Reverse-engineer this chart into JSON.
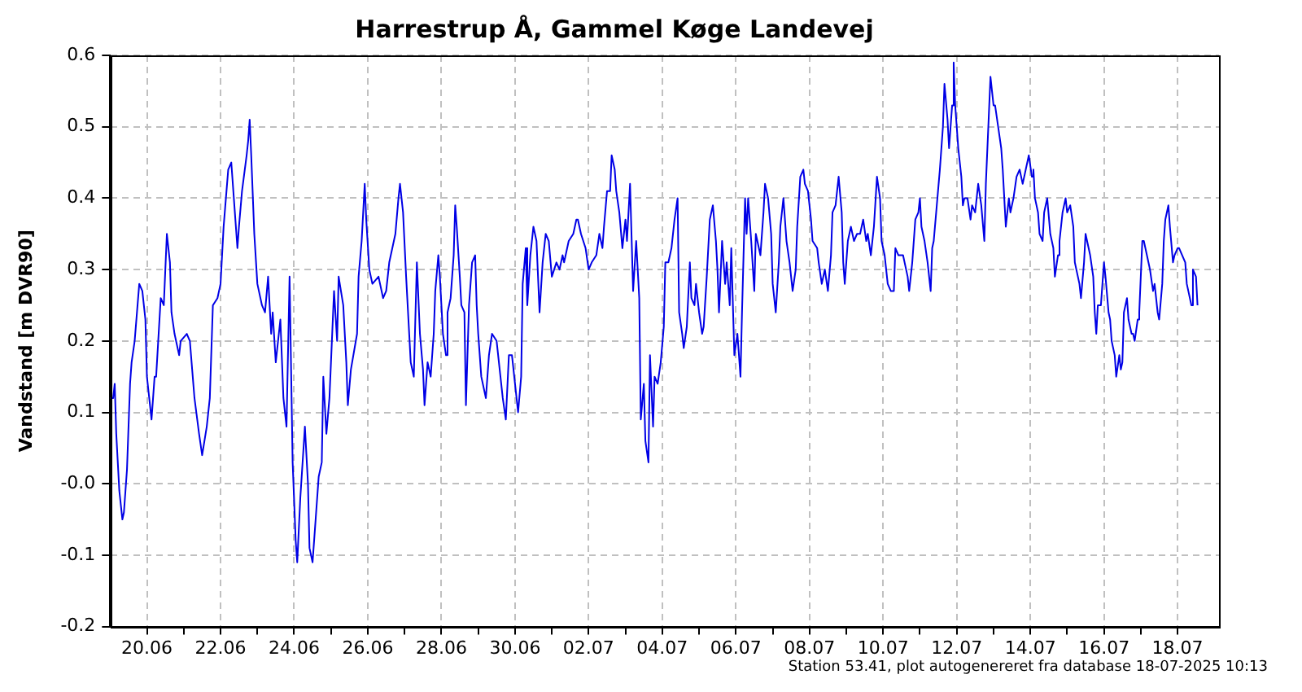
{
  "chart_data": {
    "type": "line",
    "title": "Harrestrup Å, Gammel Køge Landevej",
    "ylabel": "Vandstand [m DVR90]",
    "annotations": [
      "Station 53.41, plot autogenereret fra database 18-07-2025 10:13"
    ],
    "xlim": [
      "2025-06-19T00:00",
      "2025-07-19T03:00"
    ],
    "xticks": [
      {
        "value": "2025-06-20",
        "label": "20.06"
      },
      {
        "value": "2025-06-21",
        "label": null
      },
      {
        "value": "2025-06-22",
        "label": "22.06"
      },
      {
        "value": "2025-06-23",
        "label": null
      },
      {
        "value": "2025-06-24",
        "label": "24.06"
      },
      {
        "value": "2025-06-25",
        "label": null
      },
      {
        "value": "2025-06-26",
        "label": "26.06"
      },
      {
        "value": "2025-06-27",
        "label": null
      },
      {
        "value": "2025-06-28",
        "label": "28.06"
      },
      {
        "value": "2025-06-29",
        "label": null
      },
      {
        "value": "2025-06-30",
        "label": "30.06"
      },
      {
        "value": "2025-07-01",
        "label": null
      },
      {
        "value": "2025-07-02",
        "label": "02.07"
      },
      {
        "value": "2025-07-03",
        "label": null
      },
      {
        "value": "2025-07-04",
        "label": "04.07"
      },
      {
        "value": "2025-07-05",
        "label": null
      },
      {
        "value": "2025-07-06",
        "label": "06.07"
      },
      {
        "value": "2025-07-07",
        "label": null
      },
      {
        "value": "2025-07-08",
        "label": "08.07"
      },
      {
        "value": "2025-07-09",
        "label": null
      },
      {
        "value": "2025-07-10",
        "label": "10.07"
      },
      {
        "value": "2025-07-11",
        "label": null
      },
      {
        "value": "2025-07-12",
        "label": "12.07"
      },
      {
        "value": "2025-07-13",
        "label": null
      },
      {
        "value": "2025-07-14",
        "label": "14.07"
      },
      {
        "value": "2025-07-15",
        "label": null
      },
      {
        "value": "2025-07-16",
        "label": "16.07"
      },
      {
        "value": "2025-07-17",
        "label": null
      },
      {
        "value": "2025-07-18",
        "label": "18.07"
      }
    ],
    "ylim": [
      -0.2,
      0.6
    ],
    "yticks": [
      -0.2,
      -0.1,
      {
        "value": 0,
        "label": "-0.0"
      },
      0.1,
      0.2,
      0.3,
      0.4,
      0.5,
      0.6
    ],
    "grid": true,
    "legend": false,
    "series": [
      {
        "color": "#0000e6",
        "x": [
          "2025-06-19T00:00",
          "2025-06-19T02:00",
          "2025-06-19T03:00",
          "2025-06-19T04:00",
          "2025-06-19T06:00",
          "2025-06-19T08:00",
          "2025-06-19T09:00",
          "2025-06-19T11:00",
          "2025-06-19T13:00",
          "2025-06-19T14:00",
          "2025-06-19T16:00",
          "2025-06-19T19:00",
          "2025-06-19T21:00",
          "2025-06-19T23:00",
          "2025-06-20T00:00",
          "2025-06-20T03:00",
          "2025-06-20T05:00",
          "2025-06-20T06:00",
          "2025-06-20T09:00",
          "2025-06-20T11:00",
          "2025-06-20T13:00",
          "2025-06-20T15:00",
          "2025-06-20T16:00",
          "2025-06-20T18:00",
          "2025-06-20T21:00",
          "2025-06-20T22:00",
          "2025-06-21T02:00",
          "2025-06-21T04:00",
          "2025-06-21T07:00",
          "2025-06-21T10:00",
          "2025-06-21T12:00",
          "2025-06-21T15:00",
          "2025-06-21T17:00",
          "2025-06-21T19:00",
          "2025-06-21T22:00",
          "2025-06-22T00:00",
          "2025-06-22T02:00",
          "2025-06-22T05:00",
          "2025-06-22T07:00",
          "2025-06-22T09:00",
          "2025-06-22T11:00",
          "2025-06-22T12:00",
          "2025-06-22T14:00",
          "2025-06-22T17:00",
          "2025-06-22T18:00",
          "2025-06-22T19:00",
          "2025-06-22T20:00",
          "2025-06-22T22:00",
          "2025-06-23T00:00",
          "2025-06-23T03:00",
          "2025-06-23T05:00",
          "2025-06-23T07:00",
          "2025-06-23T09:00",
          "2025-06-23T10:00",
          "2025-06-23T12:00",
          "2025-06-23T15:00",
          "2025-06-23T17:00",
          "2025-06-23T19:00",
          "2025-06-23T21:00",
          "2025-06-23T23:00",
          "2025-06-24T01:00",
          "2025-06-24T02:00",
          "2025-06-24T04:00",
          "2025-06-24T07:00",
          "2025-06-24T09:00",
          "2025-06-24T10:00",
          "2025-06-24T12:00",
          "2025-06-24T14:00",
          "2025-06-24T16:00",
          "2025-06-24T18:00",
          "2025-06-24T19:00",
          "2025-06-24T21:00",
          "2025-06-24T23:00",
          "2025-06-25T02:00",
          "2025-06-25T04:00",
          "2025-06-25T05:00",
          "2025-06-25T08:00",
          "2025-06-25T10:00",
          "2025-06-25T11:00",
          "2025-06-25T13:00",
          "2025-06-25T17:00",
          "2025-06-25T18:00",
          "2025-06-25T20:00",
          "2025-06-25T22:00",
          "2025-06-25T23:00",
          "2025-06-26T01:00",
          "2025-06-26T03:00",
          "2025-06-26T07:00",
          "2025-06-26T10:00",
          "2025-06-26T12:00",
          "2025-06-26T14:00",
          "2025-06-26T18:00",
          "2025-06-26T20:00",
          "2025-06-26T21:00",
          "2025-06-26T23:00",
          "2025-06-27T01:00",
          "2025-06-27T03:00",
          "2025-06-27T04:00",
          "2025-06-27T06:00",
          "2025-06-27T08:00",
          "2025-06-27T10:00",
          "2025-06-27T12:00",
          "2025-06-27T13:00",
          "2025-06-27T15:00",
          "2025-06-27T17:00",
          "2025-06-27T19:00",
          "2025-06-27T20:00",
          "2025-06-27T22:00",
          "2025-06-27T23:00",
          "2025-06-28T01:00",
          "2025-06-28T03:00",
          "2025-06-28T04:00",
          "2025-06-28T06:00",
          "2025-06-28T08:00",
          "2025-06-28T09:00",
          "2025-06-28T10:00",
          "2025-06-28T12:00",
          "2025-06-28T13:00",
          "2025-06-28T15:00",
          "2025-06-28T16:00",
          "2025-06-28T18:00",
          "2025-06-28T20:00",
          "2025-06-28T22:00",
          "2025-06-28T23:00",
          "2025-06-29T00:00",
          "2025-06-29T02:00",
          "2025-06-29T05:00",
          "2025-06-29T07:00",
          "2025-06-29T09:00",
          "2025-06-29T12:00",
          "2025-06-29T14:00",
          "2025-06-29T16:00",
          "2025-06-29T18:00",
          "2025-06-29T20:00",
          "2025-06-29T22:00",
          "2025-06-30T00:00",
          "2025-06-30T02:00",
          "2025-06-30T04:00",
          "2025-06-30T05:00",
          "2025-06-30T07:00",
          "2025-06-30T08:00",
          "2025-06-30T10:00",
          "2025-06-30T12:00",
          "2025-06-30T14:00",
          "2025-06-30T16:00",
          "2025-06-30T18:00",
          "2025-06-30T20:00",
          "2025-06-30T22:00",
          "2025-07-01T00:00",
          "2025-07-01T03:00",
          "2025-07-01T05:00",
          "2025-07-01T07:00",
          "2025-07-01T08:00",
          "2025-07-01T11:00",
          "2025-07-01T14:00",
          "2025-07-01T16:00",
          "2025-07-01T17:00",
          "2025-07-01T19:00",
          "2025-07-01T22:00",
          "2025-07-02T00:00",
          "2025-07-02T02:00",
          "2025-07-02T05:00",
          "2025-07-02T07:00",
          "2025-07-02T09:00",
          "2025-07-02T10:00",
          "2025-07-02T12:00",
          "2025-07-02T14:00",
          "2025-07-02T15:00",
          "2025-07-02T17:00",
          "2025-07-02T18:00",
          "2025-07-02T20:00",
          "2025-07-02T22:00",
          "2025-07-03T00:00",
          "2025-07-03T01:00",
          "2025-07-03T03:00",
          "2025-07-03T05:00",
          "2025-07-03T07:00",
          "2025-07-03T09:00",
          "2025-07-03T10:00",
          "2025-07-03T12:00",
          "2025-07-03T13:00",
          "2025-07-03T15:00",
          "2025-07-03T16:00",
          "2025-07-03T18:00",
          "2025-07-03T19:00",
          "2025-07-03T21:00",
          "2025-07-03T23:00",
          "2025-07-04T01:00",
          "2025-07-04T02:00",
          "2025-07-04T04:00",
          "2025-07-04T06:00",
          "2025-07-04T08:00",
          "2025-07-04T10:00",
          "2025-07-04T11:00",
          "2025-07-04T13:00",
          "2025-07-04T14:00",
          "2025-07-04T16:00",
          "2025-07-04T18:00",
          "2025-07-04T19:00",
          "2025-07-04T21:00",
          "2025-07-04T22:00",
          "2025-07-05T00:00",
          "2025-07-05T02:00",
          "2025-07-05T03:00",
          "2025-07-05T05:00",
          "2025-07-05T07:00",
          "2025-07-05T09:00",
          "2025-07-05T11:00",
          "2025-07-05T12:00",
          "2025-07-05T13:00",
          "2025-07-05T15:00",
          "2025-07-05T17:00",
          "2025-07-05T18:00",
          "2025-07-05T20:00",
          "2025-07-05T21:00",
          "2025-07-05T23:00",
          "2025-07-06T01:00",
          "2025-07-06T03:00",
          "2025-07-06T04:00",
          "2025-07-06T06:00",
          "2025-07-06T07:00",
          "2025-07-06T08:00",
          "2025-07-06T10:00",
          "2025-07-06T12:00",
          "2025-07-06T13:00",
          "2025-07-06T16:00",
          "2025-07-06T18:00",
          "2025-07-06T19:00",
          "2025-07-06T21:00",
          "2025-07-06T23:00",
          "2025-07-07T00:00",
          "2025-07-07T02:00",
          "2025-07-07T04:00",
          "2025-07-07T05:00",
          "2025-07-07T07:00",
          "2025-07-07T09:00",
          "2025-07-07T11:00",
          "2025-07-07T13:00",
          "2025-07-07T15:00",
          "2025-07-07T16:00",
          "2025-07-07T18:00",
          "2025-07-07T20:00",
          "2025-07-07T21:00",
          "2025-07-07T23:00",
          "2025-07-08T01:00",
          "2025-07-08T02:00",
          "2025-07-08T05:00",
          "2025-07-08T06:00",
          "2025-07-08T08:00",
          "2025-07-08T10:00",
          "2025-07-08T12:00",
          "2025-07-08T14:00",
          "2025-07-08T15:00",
          "2025-07-08T17:00",
          "2025-07-08T19:00",
          "2025-07-08T21:00",
          "2025-07-08T22:00",
          "2025-07-08T23:00",
          "2025-07-09T01:00",
          "2025-07-09T03:00",
          "2025-07-09T05:00",
          "2025-07-09T07:00",
          "2025-07-09T09:00",
          "2025-07-09T11:00",
          "2025-07-09T13:00",
          "2025-07-09T14:00",
          "2025-07-09T16:00",
          "2025-07-09T18:00",
          "2025-07-09T20:00",
          "2025-07-09T22:00",
          "2025-07-09T23:00",
          "2025-07-10T01:00",
          "2025-07-10T03:00",
          "2025-07-10T05:00",
          "2025-07-10T07:00",
          "2025-07-10T08:00",
          "2025-07-10T10:00",
          "2025-07-10T13:00",
          "2025-07-10T16:00",
          "2025-07-10T17:00",
          "2025-07-10T19:00",
          "2025-07-10T21:00",
          "2025-07-10T23:00",
          "2025-07-11T00:00",
          "2025-07-11T01:00",
          "2025-07-11T03:00",
          "2025-07-11T05:00",
          "2025-07-11T07:00",
          "2025-07-11T08:00",
          "2025-07-11T09:00",
          "2025-07-11T11:00",
          "2025-07-11T13:00",
          "2025-07-11T15:00",
          "2025-07-11T16:00",
          "2025-07-11T18:00",
          "2025-07-11T19:00",
          "2025-07-11T21:00",
          "2025-07-11T22:00",
          "2025-07-11T23:00",
          "2025-07-12T01:00",
          "2025-07-12T03:00",
          "2025-07-12T04:00",
          "2025-07-12T05:00",
          "2025-07-12T07:00",
          "2025-07-12T09:00",
          "2025-07-12T10:00",
          "2025-07-12T12:00",
          "2025-07-12T14:00",
          "2025-07-12T16:00",
          "2025-07-12T18:00",
          "2025-07-12T19:00",
          "2025-07-12T21:00",
          "2025-07-12T22:00",
          "2025-07-13T00:00",
          "2025-07-13T01:00",
          "2025-07-13T03:00",
          "2025-07-13T05:00",
          "2025-07-13T06:00",
          "2025-07-13T08:00",
          "2025-07-13T10:00",
          "2025-07-13T11:00",
          "2025-07-13T13:00",
          "2025-07-13T15:00",
          "2025-07-13T17:00",
          "2025-07-13T19:00",
          "2025-07-13T21:00",
          "2025-07-13T23:00",
          "2025-07-14T01:00",
          "2025-07-14T02:00",
          "2025-07-14T03:00",
          "2025-07-14T05:00",
          "2025-07-14T06:00",
          "2025-07-14T08:00",
          "2025-07-14T09:00",
          "2025-07-14T11:00",
          "2025-07-14T13:00",
          "2025-07-14T15:00",
          "2025-07-14T16:00",
          "2025-07-14T18:00",
          "2025-07-14T19:00",
          "2025-07-14T21:00",
          "2025-07-14T23:00",
          "2025-07-15T00:00",
          "2025-07-15T02:00",
          "2025-07-15T04:00",
          "2025-07-15T05:00",
          "2025-07-15T06:00",
          "2025-07-15T08:00",
          "2025-07-15T09:00",
          "2025-07-15T11:00",
          "2025-07-15T12:00",
          "2025-07-15T14:00",
          "2025-07-15T15:00",
          "2025-07-15T17:00",
          "2025-07-15T18:00",
          "2025-07-15T19:00",
          "2025-07-15T20:00",
          "2025-07-15T22:00",
          "2025-07-16T00:00",
          "2025-07-16T01:00",
          "2025-07-16T03:00",
          "2025-07-16T04:00",
          "2025-07-16T05:00",
          "2025-07-16T07:00",
          "2025-07-16T08:00",
          "2025-07-16T10:00",
          "2025-07-16T11:00",
          "2025-07-16T12:00",
          "2025-07-16T13:00",
          "2025-07-16T15:00",
          "2025-07-16T16:00",
          "2025-07-16T18:00",
          "2025-07-16T19:00",
          "2025-07-16T20:00",
          "2025-07-16T22:00",
          "2025-07-16T23:00",
          "2025-07-17T01:00",
          "2025-07-17T02:00",
          "2025-07-17T04:00",
          "2025-07-17T05:00",
          "2025-07-17T06:00",
          "2025-07-17T08:00",
          "2025-07-17T09:00",
          "2025-07-17T11:00",
          "2025-07-17T12:00",
          "2025-07-17T14:00",
          "2025-07-17T15:00",
          "2025-07-17T16:00",
          "2025-07-17T18:00",
          "2025-07-17T19:00",
          "2025-07-17T21:00",
          "2025-07-17T22:00",
          "2025-07-18T00:00",
          "2025-07-18T01:00",
          "2025-07-18T03:00",
          "2025-07-18T05:00",
          "2025-07-18T06:00",
          "2025-07-18T07:00",
          "2025-07-18T09:00",
          "2025-07-18T10:00",
          "2025-07-18T12:00",
          "2025-07-18T13:00"
        ],
        "values": [
          0.12,
          0.12,
          0.14,
          0.07,
          -0.01,
          -0.05,
          -0.04,
          0.02,
          0.14,
          0.17,
          0.2,
          0.28,
          0.27,
          0.23,
          0.15,
          0.09,
          0.15,
          0.15,
          0.26,
          0.25,
          0.35,
          0.31,
          0.24,
          0.21,
          0.18,
          0.2,
          0.21,
          0.2,
          0.12,
          0.07,
          0.04,
          0.08,
          0.12,
          0.25,
          0.26,
          0.28,
          0.36,
          0.44,
          0.45,
          0.39,
          0.33,
          0.36,
          0.41,
          0.46,
          0.48,
          0.51,
          0.46,
          0.35,
          0.28,
          0.25,
          0.24,
          0.29,
          0.21,
          0.24,
          0.17,
          0.23,
          0.12,
          0.08,
          0.29,
          0.03,
          -0.08,
          -0.11,
          -0.02,
          0.08,
          0.0,
          -0.09,
          -0.11,
          -0.05,
          0.01,
          0.03,
          0.15,
          0.07,
          0.12,
          0.27,
          0.2,
          0.29,
          0.25,
          0.17,
          0.11,
          0.16,
          0.21,
          0.29,
          0.34,
          0.42,
          0.37,
          0.3,
          0.28,
          0.29,
          0.26,
          0.27,
          0.31,
          0.35,
          0.4,
          0.42,
          0.38,
          0.29,
          0.21,
          0.17,
          0.15,
          0.31,
          0.21,
          0.16,
          0.11,
          0.17,
          0.15,
          0.21,
          0.27,
          0.32,
          0.29,
          0.21,
          0.18,
          0.24,
          0.26,
          0.32,
          0.39,
          0.36,
          0.29,
          0.25,
          0.24,
          0.11,
          0.25,
          0.31,
          0.32,
          0.25,
          0.21,
          0.15,
          0.12,
          0.18,
          0.21,
          0.2,
          0.16,
          0.12,
          0.09,
          0.18,
          0.18,
          0.14,
          0.1,
          0.15,
          0.28,
          0.33,
          0.25,
          0.32,
          0.36,
          0.34,
          0.24,
          0.31,
          0.35,
          0.34,
          0.29,
          0.31,
          0.3,
          0.32,
          0.31,
          0.34,
          0.35,
          0.37,
          0.37,
          0.35,
          0.33,
          0.3,
          0.31,
          0.32,
          0.35,
          0.33,
          0.36,
          0.41,
          0.41,
          0.46,
          0.44,
          0.41,
          0.38,
          0.33,
          0.37,
          0.34,
          0.42,
          0.27,
          0.34,
          0.26,
          0.09,
          0.14,
          0.06,
          0.03,
          0.18,
          0.08,
          0.15,
          0.14,
          0.17,
          0.22,
          0.31,
          0.31,
          0.33,
          0.37,
          0.4,
          0.24,
          0.21,
          0.19,
          0.22,
          0.31,
          0.26,
          0.25,
          0.28,
          0.24,
          0.21,
          0.22,
          0.29,
          0.37,
          0.39,
          0.34,
          0.3,
          0.24,
          0.34,
          0.28,
          0.31,
          0.25,
          0.33,
          0.18,
          0.21,
          0.15,
          0.24,
          0.4,
          0.35,
          0.4,
          0.34,
          0.27,
          0.35,
          0.32,
          0.38,
          0.42,
          0.4,
          0.35,
          0.28,
          0.24,
          0.31,
          0.36,
          0.4,
          0.34,
          0.31,
          0.27,
          0.3,
          0.36,
          0.43,
          0.44,
          0.42,
          0.41,
          0.37,
          0.34,
          0.33,
          0.31,
          0.28,
          0.3,
          0.27,
          0.32,
          0.38,
          0.39,
          0.43,
          0.38,
          0.31,
          0.28,
          0.34,
          0.36,
          0.34,
          0.35,
          0.35,
          0.37,
          0.34,
          0.35,
          0.32,
          0.36,
          0.43,
          0.4,
          0.34,
          0.32,
          0.28,
          0.27,
          0.27,
          0.33,
          0.32,
          0.32,
          0.29,
          0.27,
          0.31,
          0.37,
          0.38,
          0.4,
          0.36,
          0.34,
          0.31,
          0.27,
          0.33,
          0.34,
          0.39,
          0.44,
          0.5,
          0.56,
          0.51,
          0.47,
          0.53,
          0.59,
          0.53,
          0.47,
          0.43,
          0.39,
          0.4,
          0.4,
          0.37,
          0.39,
          0.38,
          0.42,
          0.39,
          0.34,
          0.42,
          0.52,
          0.57,
          0.53,
          0.53,
          0.5,
          0.47,
          0.44,
          0.36,
          0.4,
          0.38,
          0.4,
          0.43,
          0.44,
          0.42,
          0.44,
          0.46,
          0.43,
          0.44,
          0.4,
          0.38,
          0.35,
          0.34,
          0.38,
          0.4,
          0.35,
          0.33,
          0.29,
          0.32,
          0.34,
          0.38,
          0.4,
          0.38,
          0.39,
          0.36,
          0.31,
          0.3,
          0.28,
          0.26,
          0.31,
          0.35,
          0.33,
          0.32,
          0.29,
          0.24,
          0.21,
          0.25,
          0.25,
          0.31,
          0.29,
          0.24,
          0.23,
          0.2,
          0.18,
          0.15,
          0.18,
          0.16,
          0.17,
          0.24,
          0.26,
          0.23,
          0.21,
          0.21,
          0.2,
          0.23,
          0.24,
          0.34,
          0.34,
          0.32,
          0.31,
          0.3,
          0.27,
          0.28,
          0.24,
          0.23,
          0.28,
          0.34,
          0.37,
          0.39,
          0.36,
          0.31,
          0.32,
          0.33,
          0.33,
          0.32,
          0.31,
          0.28,
          0.27,
          0.25,
          0.3,
          0.29,
          0.25
        ]
      }
    ]
  }
}
